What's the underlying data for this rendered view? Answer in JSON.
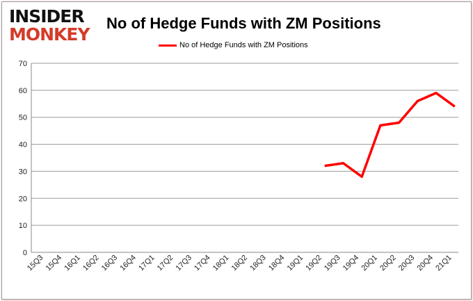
{
  "logo": {
    "line1": "INSIDER",
    "line2": "MONKEY"
  },
  "chart_data": {
    "type": "line",
    "title": "No of Hedge Funds with ZM Positions",
    "categories": [
      "15Q3",
      "15Q4",
      "16Q1",
      "16Q2",
      "16Q3",
      "16Q4",
      "17Q1",
      "17Q2",
      "17Q3",
      "17Q4",
      "18Q1",
      "18Q2",
      "18Q3",
      "18Q4",
      "19Q1",
      "19Q2",
      "19Q3",
      "19Q4",
      "20Q1",
      "20Q2",
      "20Q3",
      "20Q4",
      "21Q1"
    ],
    "series": [
      {
        "name": "No of Hedge Funds with ZM Positions",
        "color": "#ff0000",
        "values": [
          null,
          null,
          null,
          null,
          null,
          null,
          null,
          null,
          null,
          null,
          null,
          null,
          null,
          null,
          null,
          32,
          33,
          28,
          47,
          48,
          56,
          59,
          54
        ]
      }
    ],
    "ylim": [
      0,
      70
    ],
    "yticks": [
      0,
      10,
      20,
      30,
      40,
      50,
      60,
      70
    ],
    "grid": true,
    "legend": "top"
  }
}
